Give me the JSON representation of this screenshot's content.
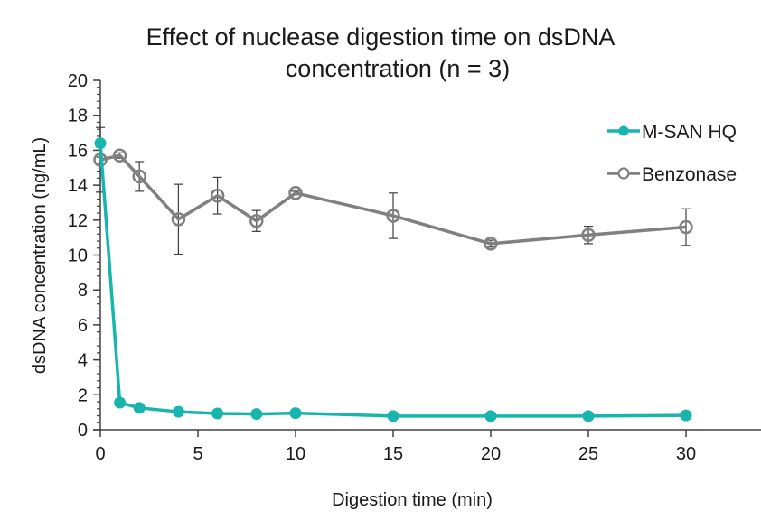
{
  "chart_data": {
    "type": "line",
    "title": [
      "Effect of nuclease digestion time on dsDNA",
      "concentration (n = 3)"
    ],
    "xlabel": "Digestion time (min)",
    "ylabel": "dsDNA concentration (ng/mL)",
    "xlim": [
      0,
      32
    ],
    "ylim": [
      0,
      20
    ],
    "xticks": [
      0,
      5,
      10,
      15,
      20,
      25,
      30
    ],
    "yticks": [
      0,
      2,
      4,
      6,
      8,
      10,
      12,
      14,
      16,
      18,
      20
    ],
    "y_minor_step": 0.4,
    "grid": false,
    "legend_position": "top-right",
    "x": [
      0,
      1,
      2,
      4,
      6,
      8,
      10,
      15,
      20,
      25,
      30
    ],
    "series": [
      {
        "name": "M-SAN HQ",
        "color": "#17B5AE",
        "marker": "filled-circle",
        "values": [
          16.4,
          1.55,
          1.25,
          1.03,
          0.93,
          0.9,
          0.95,
          0.78,
          0.78,
          0.78,
          0.82
        ],
        "errors": [
          0,
          0,
          0,
          0,
          0,
          0,
          0,
          0,
          0,
          0,
          0
        ]
      },
      {
        "name": "Benzonase",
        "color": "#808080",
        "marker": "open-circle",
        "values": [
          15.45,
          15.7,
          14.5,
          12.05,
          13.4,
          11.95,
          13.55,
          12.25,
          10.65,
          11.15,
          11.6
        ],
        "errors": [
          1.85,
          0.15,
          0.85,
          2.0,
          1.05,
          0.6,
          0.1,
          1.3,
          0.2,
          0.5,
          1.05
        ]
      }
    ]
  }
}
